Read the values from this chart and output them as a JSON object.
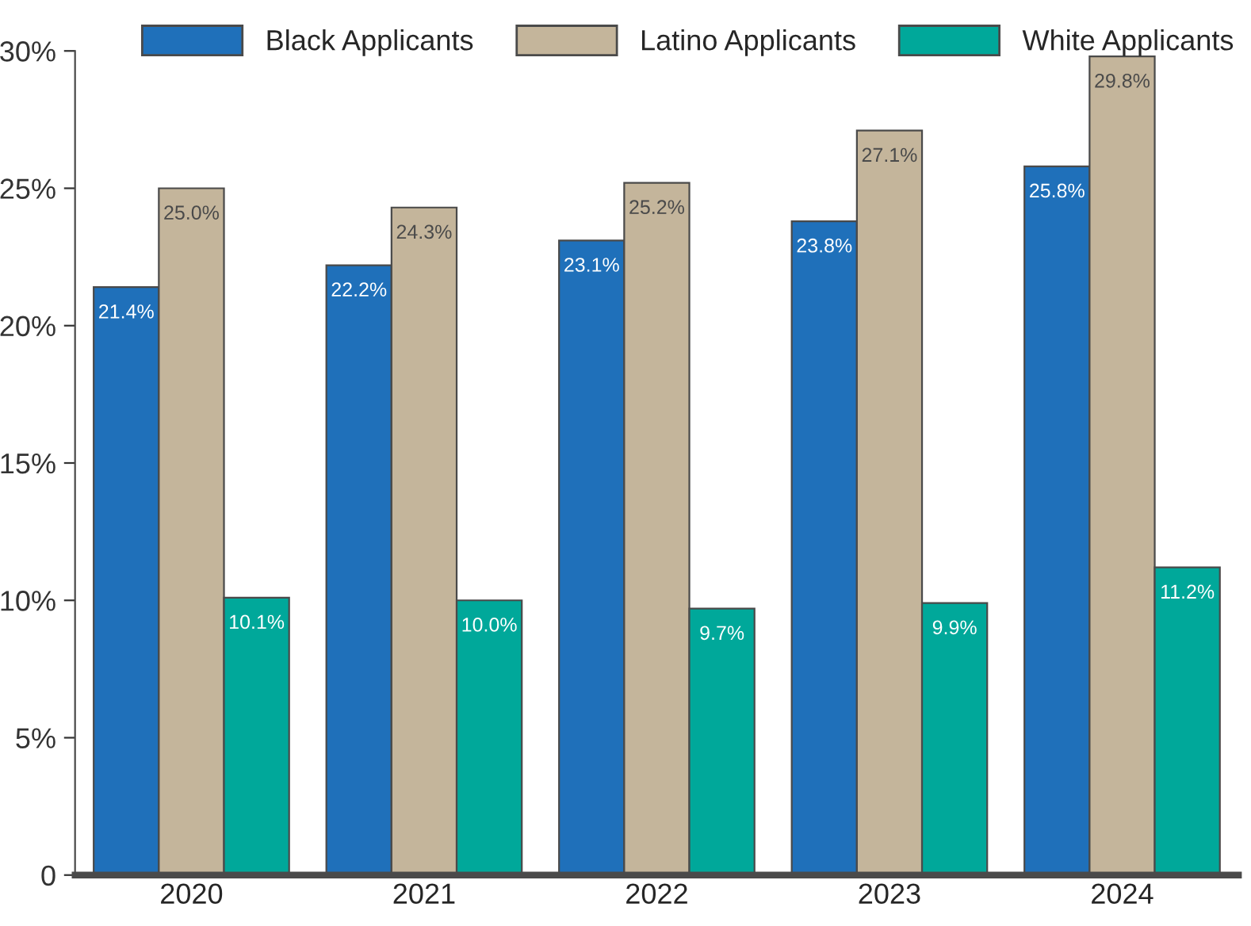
{
  "chart_data": {
    "type": "bar",
    "categories": [
      "2020",
      "2021",
      "2022",
      "2023",
      "2024"
    ],
    "series": [
      {
        "name": "Black Applicants",
        "color": "#1f70ba",
        "values": [
          21.4,
          22.2,
          23.1,
          23.8,
          25.8
        ],
        "value_labels": [
          "21.4%",
          "22.2%",
          "23.1%",
          "23.8%",
          "25.8%"
        ]
      },
      {
        "name": "Latino Applicants",
        "color": "#c4b59b",
        "values": [
          25.0,
          24.3,
          25.2,
          27.1,
          29.8
        ],
        "value_labels": [
          "25.0%",
          "24.3%",
          "25.2%",
          "27.1%",
          "29.8%"
        ]
      },
      {
        "name": "White Applicants",
        "color": "#00a89a",
        "values": [
          10.1,
          10.0,
          9.7,
          9.9,
          11.2
        ],
        "value_labels": [
          "10.1%",
          "10.0%",
          "9.7%",
          "9.9%",
          "11.2%"
        ]
      }
    ],
    "ylim": [
      0,
      30
    ],
    "yticks": [
      0,
      {
        "value": 5,
        "label": "5%"
      },
      {
        "value": 10,
        "label": "10%"
      },
      {
        "value": 15,
        "label": "15%"
      },
      {
        "value": 20,
        "label": "20%"
      },
      {
        "value": 25,
        "label": "25%"
      },
      {
        "value": 30,
        "label": "30%"
      }
    ],
    "grid": false,
    "legend": "top"
  }
}
